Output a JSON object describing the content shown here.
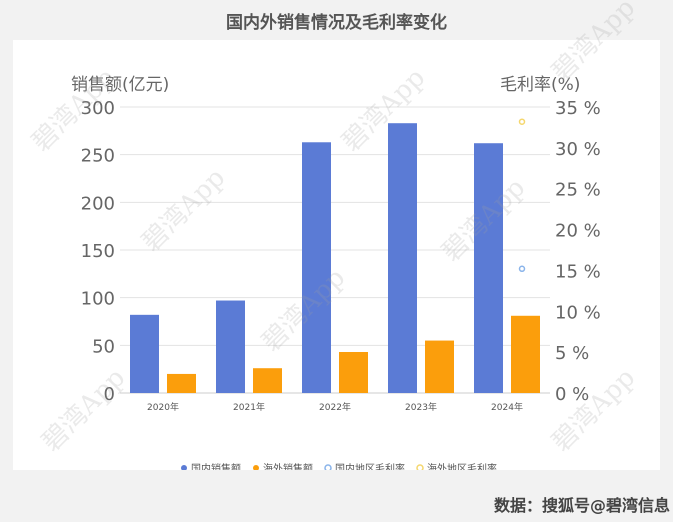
{
  "title": "国内外销售情况及毛利率变化",
  "source_note": "数据：搜狐号@碧湾信息",
  "watermark": "碧湾App",
  "chart_data": {
    "type": "bar",
    "categories": [
      "2020年",
      "2021年",
      "2022年",
      "2023年",
      "2024年"
    ],
    "left_axis": {
      "label": "销售额(亿元)",
      "ylim": [
        0,
        300
      ],
      "ticks": [
        "0",
        "50",
        "100",
        "150",
        "200",
        "250",
        "300"
      ]
    },
    "right_axis": {
      "label": "毛利率(%)",
      "ylim": [
        0,
        35
      ],
      "ticks": [
        "0 %",
        "5 %",
        "10 %",
        "15 %",
        "20 %",
        "25 %",
        "30 %",
        "35 %"
      ]
    },
    "series": [
      {
        "name": "国内销售额",
        "kind": "bar",
        "axis": "left",
        "color": "#5b7bd5",
        "values": [
          82,
          97,
          263,
          283,
          262
        ]
      },
      {
        "name": "海外销售额",
        "kind": "bar",
        "axis": "left",
        "color": "#fb9e0c",
        "values": [
          20,
          26,
          43,
          55,
          81
        ]
      },
      {
        "name": "国内地区毛利率",
        "kind": "scatter",
        "axis": "right",
        "color": "#8ab4ea",
        "values": [
          null,
          null,
          null,
          null,
          15.2
        ]
      },
      {
        "name": "海外地区毛利率",
        "kind": "scatter",
        "axis": "right",
        "color": "#f5d76e",
        "values": [
          null,
          null,
          null,
          null,
          33.2
        ]
      }
    ],
    "grid": true,
    "legend_position": "bottom"
  }
}
